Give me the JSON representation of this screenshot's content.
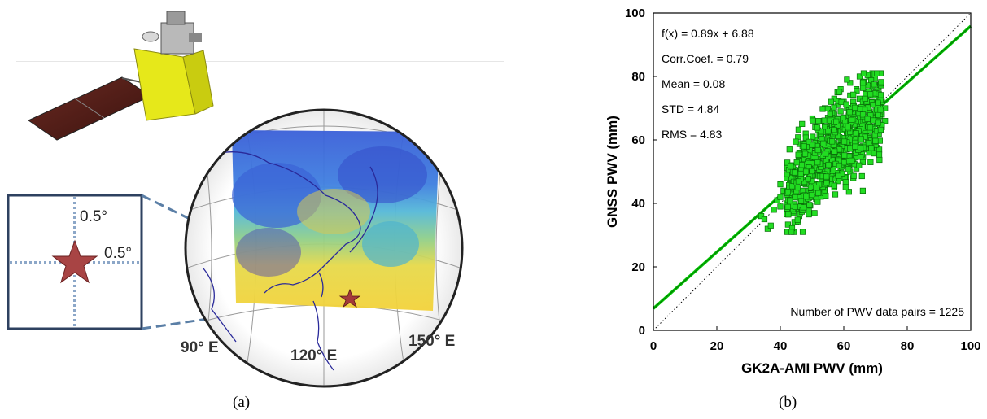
{
  "panel_a": {
    "caption": "(a)",
    "grid_box": {
      "label_vertical": "0.5°",
      "label_horizontal": "0.5°"
    },
    "map_labels": {
      "lon_90": "90° E",
      "lon_120": "120° E",
      "lon_150": "150° E"
    },
    "colors": {
      "star": "#a33a3a",
      "box_stroke": "#2e4160",
      "dash_line": "#5b7fa6"
    }
  },
  "panel_b": {
    "caption": "(b)",
    "stats": {
      "fit": "f(x) = 0.89x + 6.88",
      "corr": "Corr.Coef. = 0.79",
      "mean": "Mean = 0.08",
      "std": "STD = 4.84",
      "rms": "RMS = 4.83"
    },
    "note": "Number of PWV data pairs = 1225"
  },
  "chart_data": {
    "type": "scatter",
    "xlabel": "GK2A-AMI PWV (mm)",
    "ylabel": "GNSS PWV (mm)",
    "xlim": [
      0,
      100
    ],
    "ylim": [
      0,
      100
    ],
    "xticks": [
      0,
      20,
      40,
      60,
      80,
      100
    ],
    "yticks": [
      0,
      20,
      40,
      60,
      80,
      100
    ],
    "grid": false,
    "fit": {
      "slope": 0.89,
      "intercept": 6.88
    },
    "reference_line": "y = x",
    "point_count": 1225,
    "colors": {
      "points": "#22dd22",
      "points_edge": "#0a6e0a",
      "fit": "#00c800"
    },
    "cluster": {
      "x_range": [
        33,
        73
      ],
      "y_range": [
        31,
        81
      ],
      "representative_points": [
        [
          34,
          36
        ],
        [
          35,
          35
        ],
        [
          36,
          32
        ],
        [
          37,
          33
        ],
        [
          38,
          38
        ],
        [
          39,
          41
        ],
        [
          40,
          39
        ],
        [
          40,
          42
        ],
        [
          41,
          44
        ],
        [
          42,
          37
        ],
        [
          42,
          40
        ],
        [
          43,
          41
        ],
        [
          43,
          46
        ],
        [
          44,
          44
        ],
        [
          44,
          39
        ],
        [
          45,
          43
        ],
        [
          45,
          48
        ],
        [
          45,
          38
        ],
        [
          46,
          36
        ],
        [
          46,
          42
        ],
        [
          46,
          50
        ],
        [
          47,
          44
        ],
        [
          47,
          47
        ],
        [
          47,
          53
        ],
        [
          48,
          40
        ],
        [
          48,
          46
        ],
        [
          48,
          52
        ],
        [
          48,
          56
        ],
        [
          49,
          44
        ],
        [
          49,
          49
        ],
        [
          49,
          55
        ],
        [
          50,
          42
        ],
        [
          50,
          47
        ],
        [
          50,
          53
        ],
        [
          50,
          58
        ],
        [
          51,
          46
        ],
        [
          51,
          51
        ],
        [
          51,
          56
        ],
        [
          51,
          60
        ],
        [
          52,
          44
        ],
        [
          52,
          49
        ],
        [
          52,
          54
        ],
        [
          52,
          59
        ],
        [
          52,
          63
        ],
        [
          53,
          47
        ],
        [
          53,
          52
        ],
        [
          53,
          57
        ],
        [
          53,
          61
        ],
        [
          53,
          66
        ],
        [
          54,
          45
        ],
        [
          54,
          50
        ],
        [
          54,
          55
        ],
        [
          54,
          60
        ],
        [
          54,
          64
        ],
        [
          55,
          48
        ],
        [
          55,
          53
        ],
        [
          55,
          58
        ],
        [
          55,
          62
        ],
        [
          55,
          67
        ],
        [
          56,
          46
        ],
        [
          56,
          51
        ],
        [
          56,
          56
        ],
        [
          56,
          61
        ],
        [
          56,
          65
        ],
        [
          56,
          69
        ],
        [
          57,
          49
        ],
        [
          57,
          54
        ],
        [
          57,
          59
        ],
        [
          57,
          63
        ],
        [
          57,
          68
        ],
        [
          58,
          47
        ],
        [
          58,
          52
        ],
        [
          58,
          57
        ],
        [
          58,
          62
        ],
        [
          58,
          66
        ],
        [
          58,
          71
        ],
        [
          59,
          50
        ],
        [
          59,
          55
        ],
        [
          59,
          60
        ],
        [
          59,
          64
        ],
        [
          59,
          69
        ],
        [
          60,
          48
        ],
        [
          60,
          53
        ],
        [
          60,
          58
        ],
        [
          60,
          63
        ],
        [
          60,
          67
        ],
        [
          60,
          72
        ],
        [
          61,
          52
        ],
        [
          61,
          57
        ],
        [
          61,
          61
        ],
        [
          61,
          66
        ],
        [
          61,
          70
        ],
        [
          62,
          50
        ],
        [
          62,
          55
        ],
        [
          62,
          60
        ],
        [
          62,
          64
        ],
        [
          62,
          69
        ],
        [
          62,
          74
        ],
        [
          63,
          53
        ],
        [
          63,
          58
        ],
        [
          63,
          62
        ],
        [
          63,
          67
        ],
        [
          63,
          72
        ],
        [
          64,
          51
        ],
        [
          64,
          56
        ],
        [
          64,
          61
        ],
        [
          64,
          65
        ],
        [
          64,
          70
        ],
        [
          64,
          76
        ],
        [
          65,
          55
        ],
        [
          65,
          60
        ],
        [
          65,
          64
        ],
        [
          65,
          68
        ],
        [
          65,
          73
        ],
        [
          66,
          53
        ],
        [
          66,
          58
        ],
        [
          66,
          63
        ],
        [
          66,
          67
        ],
        [
          66,
          72
        ],
        [
          66,
          78
        ],
        [
          67,
          57
        ],
        [
          67,
          62
        ],
        [
          67,
          66
        ],
        [
          67,
          70
        ],
        [
          67,
          75
        ],
        [
          68,
          56
        ],
        [
          68,
          61
        ],
        [
          68,
          65
        ],
        [
          68,
          69
        ],
        [
          68,
          74
        ],
        [
          68,
          80
        ],
        [
          69,
          59
        ],
        [
          69,
          64
        ],
        [
          69,
          68
        ],
        [
          69,
          72
        ],
        [
          69,
          77
        ],
        [
          70,
          58
        ],
        [
          70,
          63
        ],
        [
          70,
          67
        ],
        [
          70,
          71
        ],
        [
          70,
          75
        ],
        [
          71,
          62
        ],
        [
          71,
          66
        ],
        [
          71,
          70
        ],
        [
          71,
          74
        ],
        [
          72,
          64
        ],
        [
          72,
          68
        ],
        [
          72,
          72
        ],
        [
          73,
          66
        ],
        [
          73,
          70
        ],
        [
          66,
          44
        ],
        [
          45,
          34
        ],
        [
          50,
          45
        ],
        [
          55,
          50
        ],
        [
          60,
          55
        ],
        [
          58,
          75
        ],
        [
          62,
          78
        ],
        [
          52,
          66
        ],
        [
          47,
          58
        ],
        [
          44,
          52
        ],
        [
          42,
          48
        ],
        [
          40,
          46
        ],
        [
          48,
          62
        ],
        [
          54,
          70
        ],
        [
          57,
          73
        ],
        [
          64,
          58
        ],
        [
          67,
          64
        ],
        [
          70,
          69
        ],
        [
          53,
          43
        ],
        [
          49,
          38
        ],
        [
          46,
          56
        ],
        [
          51,
          64
        ],
        [
          56,
          72
        ],
        [
          59,
          76
        ],
        [
          61,
          79
        ],
        [
          65,
          80
        ],
        [
          69,
          81
        ],
        [
          63,
          48
        ],
        [
          57,
          45
        ],
        [
          43,
          50
        ]
      ]
    }
  }
}
